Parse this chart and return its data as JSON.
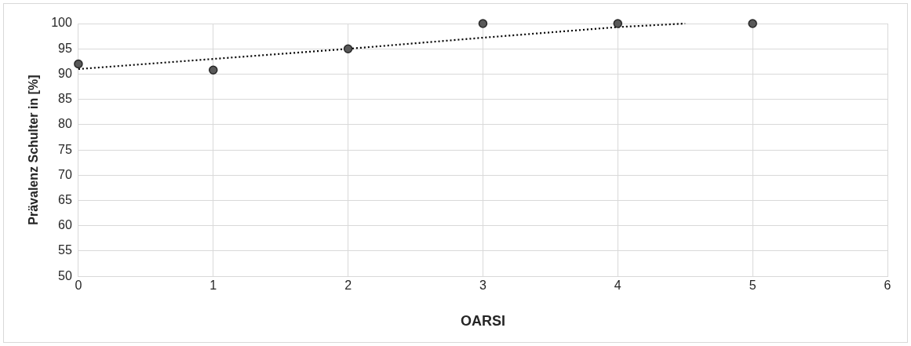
{
  "chart_data": {
    "type": "scatter",
    "xlabel": "OARSI",
    "ylabel": "Prävalenz Schulter in [%]",
    "xlim": [
      0,
      6
    ],
    "xticks": [
      0,
      1,
      2,
      3,
      4,
      5,
      6
    ],
    "ylim": [
      50,
      100
    ],
    "yticks": [
      50,
      55,
      60,
      65,
      70,
      75,
      80,
      85,
      90,
      95,
      100
    ],
    "grid": true,
    "legend": false,
    "x": [
      0,
      1,
      2,
      3,
      4,
      5
    ],
    "series": [
      {
        "type": "scatter",
        "color": "#595959",
        "marker": "circle",
        "values": [
          92,
          90.8,
          95,
          100,
          100,
          100
        ]
      },
      {
        "type": "line",
        "color": "#000000",
        "line_style": "dotted",
        "marker": "none",
        "x": [
          0,
          1,
          2,
          3,
          4,
          4.5
        ],
        "values": [
          91,
          93,
          95,
          97.2,
          99.3,
          100
        ]
      }
    ]
  }
}
